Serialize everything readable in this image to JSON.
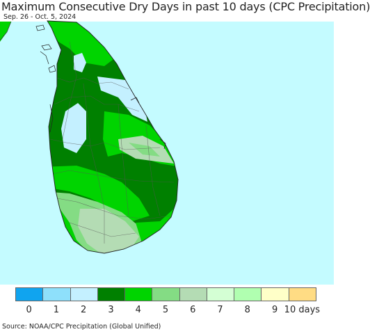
{
  "title": "Maximum Consecutive Dry Days in past 10 days (CPC Precipitation)",
  "subtitle": "Sep. 26 - Oct. 5, 2024",
  "source": "Source: NOAA/CPC Precipitation (Global Unified)",
  "colors": {
    "ocean": "#c4fbff",
    "d0": "#10a4ef",
    "d1": "#8ee0fb",
    "d2": "#c4f0ff",
    "d3": "#008000",
    "d4": "#00d400",
    "d5": "#84dc84",
    "d6": "#b4dcb4",
    "d7": "#d4ffd4",
    "d8": "#b0ffb0",
    "d9": "#ffffc8",
    "d10": "#ffdc84"
  },
  "legend": {
    "labels": [
      "0",
      "1",
      "2",
      "3",
      "4",
      "5",
      "6",
      "7",
      "8",
      "9",
      "10 days"
    ],
    "colors": [
      "#10a4ef",
      "#8ee0fb",
      "#c4f0ff",
      "#008000",
      "#00d400",
      "#84dc84",
      "#b4dcb4",
      "#d4ffd4",
      "#b0ffb0",
      "#ffffc8",
      "#ffdc84"
    ]
  }
}
